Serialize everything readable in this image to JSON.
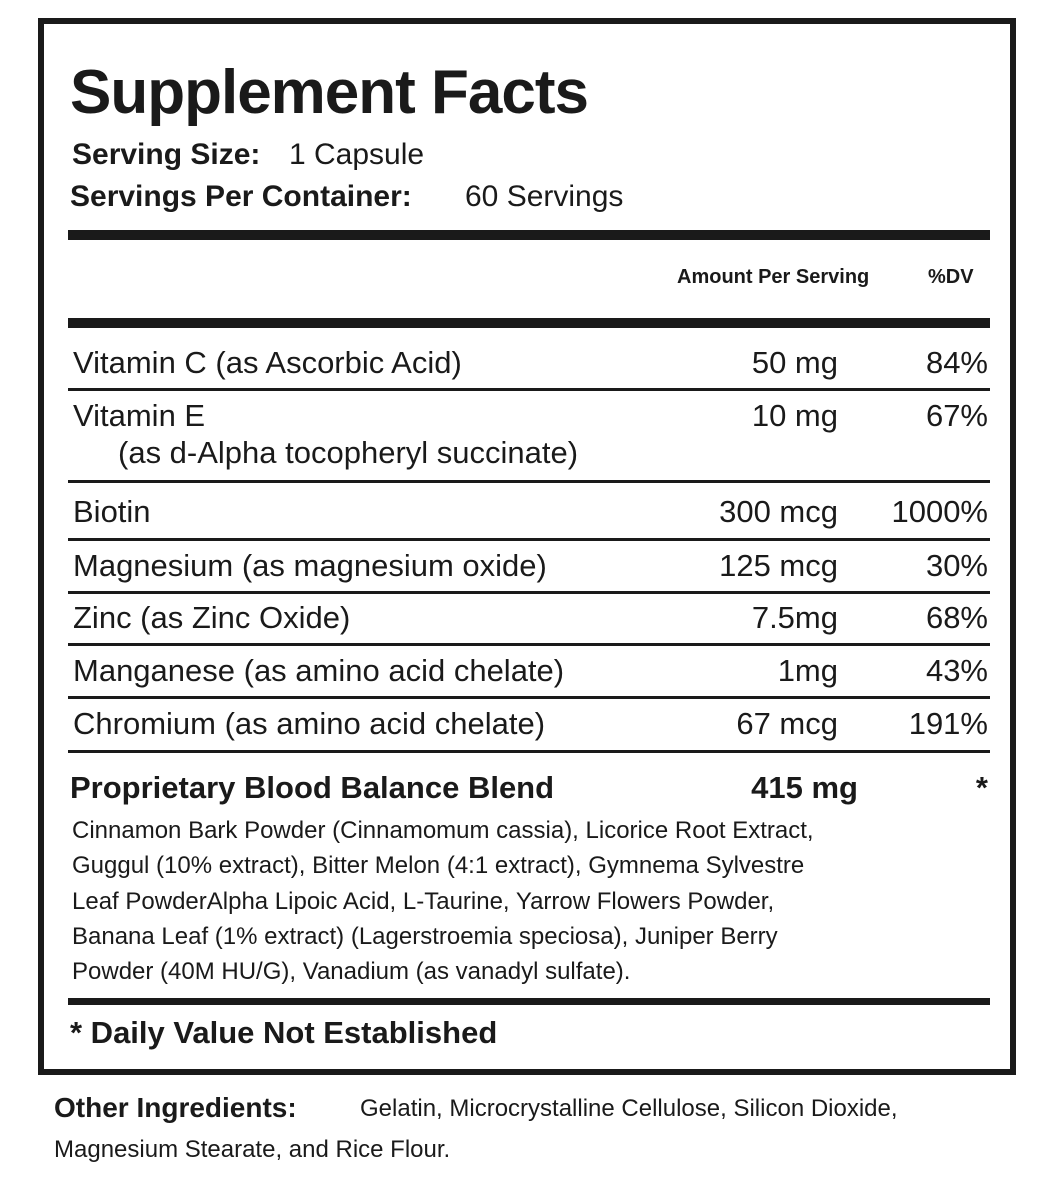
{
  "header": {
    "title": "Supplement Facts",
    "serving_size": {
      "label": "Serving Size:",
      "value": "1 Capsule"
    },
    "servings_per_container": {
      "label": "Servings Per Container:",
      "value": "60 Servings"
    }
  },
  "columns": {
    "amount": "Amount Per Serving",
    "dv": "%DV"
  },
  "rows": [
    {
      "name": "Vitamin C (as Ascorbic Acid)",
      "amount": "50 mg",
      "dv": "84%"
    },
    {
      "name": "Vitamin E",
      "sub": "(as d-Alpha tocopheryl succinate)",
      "amount": "10 mg",
      "dv": "67%"
    },
    {
      "name": "Biotin",
      "amount": "300 mcg",
      "dv": "1000%"
    },
    {
      "name": "Magnesium (as magnesium oxide)",
      "amount": "125 mcg",
      "dv": "30%"
    },
    {
      "name": "Zinc (as Zinc Oxide)",
      "amount": "7.5mg",
      "dv": "68%"
    },
    {
      "name": "Manganese (as amino acid chelate)",
      "amount": "1mg",
      "dv": "43%"
    },
    {
      "name": "Chromium (as amino acid chelate)",
      "amount": "67 mcg",
      "dv": "191%"
    }
  ],
  "blend": {
    "name": "Proprietary Blood Balance Blend",
    "amount": "415 mg",
    "dv": "*",
    "lines": [
      "Cinnamon Bark Powder (Cinnamomum cassia), Licorice Root Extract,",
      "Guggul (10% extract), Bitter Melon (4:1 extract), Gymnema Sylvestre",
      "Leaf PowderAlpha Lipoic Acid, L-Taurine, Yarrow Flowers Powder,",
      "Banana Leaf (1% extract) (Lagerstroemia speciosa), Juniper Berry",
      "Powder (40M HU/G), Vanadium (as vanadyl sulfate)."
    ]
  },
  "footnote": "* Daily Value Not Established",
  "other_ingredients": {
    "label": "Other Ingredients:",
    "lines": [
      "Gelatin, Microcrystalline Cellulose, Silicon Dioxide,",
      "Magnesium Stearate, and Rice Flour."
    ]
  }
}
